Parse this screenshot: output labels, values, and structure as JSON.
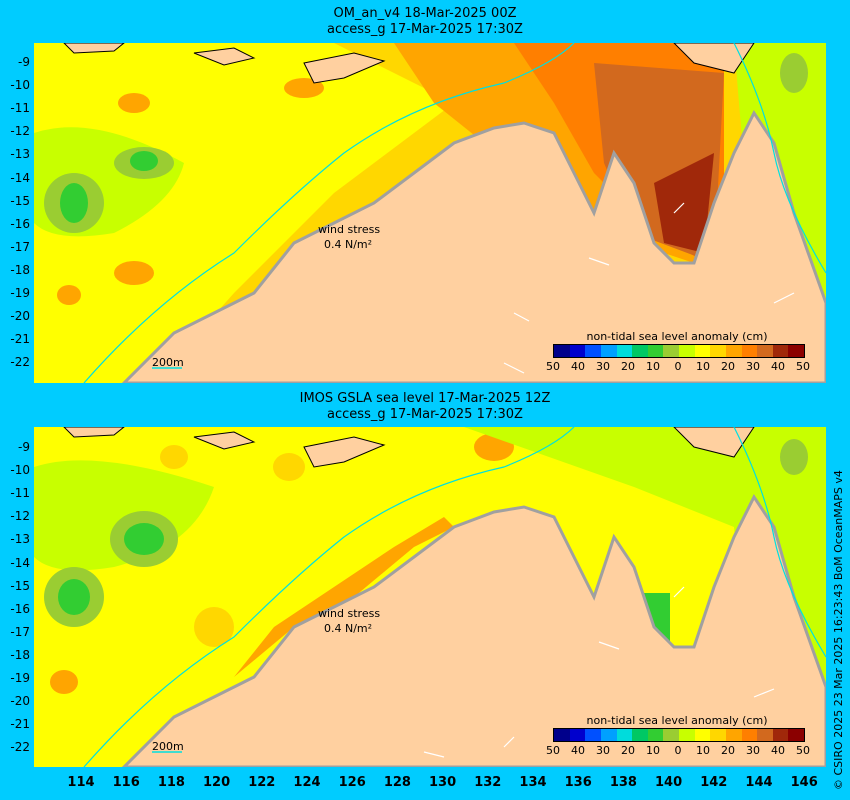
{
  "top_panel": {
    "title_line1": "OM_an_v4  18-Mar-2025 00Z",
    "title_line2": "access_g 17-Mar-2025 17:30Z",
    "wind_label": "wind stress",
    "wind_value": "0.4 N/m²",
    "depth_label": "200m",
    "colorbar_title": "non-tidal sea level anomaly (cm)"
  },
  "bottom_panel": {
    "title_line1": "IMOS GSLA sea level  17-Mar-2025 12Z",
    "title_line2": "access_g 17-Mar-2025 17:30Z",
    "wind_label": "wind stress",
    "wind_value": "0.4 N/m²",
    "depth_label": "200m",
    "colorbar_title": "non-tidal sea level anomaly (cm)"
  },
  "colorbar_ticks": [
    "50",
    "40",
    "30",
    "20",
    "10",
    "0",
    "10",
    "20",
    "30",
    "40",
    "50"
  ],
  "colorbar_colors": [
    "#00008b",
    "#0000cd",
    "#0050ff",
    "#00a0ff",
    "#00dcdc",
    "#00c864",
    "#32cd32",
    "#9acd32",
    "#c8ff00",
    "#ffff00",
    "#ffd700",
    "#ffa500",
    "#ff7f00",
    "#d2691e",
    "#a0280a",
    "#8b0000"
  ],
  "y_axis_labels": [
    "-9",
    "-10",
    "-11",
    "-12",
    "-13",
    "-14",
    "-15",
    "-16",
    "-17",
    "-18",
    "-19",
    "-20",
    "-21",
    "-22"
  ],
  "x_axis_labels": [
    "114",
    "116",
    "118",
    "120",
    "122",
    "124",
    "126",
    "128",
    "130",
    "132",
    "134",
    "136",
    "138",
    "140",
    "142",
    "144",
    "146"
  ],
  "copyright": "© CSIRO 2025   23 Mar 2025 16:23:43 BoM OceanMAPS v4",
  "colors": {
    "background": "#00ccff",
    "land": "#ffd0a0",
    "shelf_contour": "#00e0e0"
  }
}
